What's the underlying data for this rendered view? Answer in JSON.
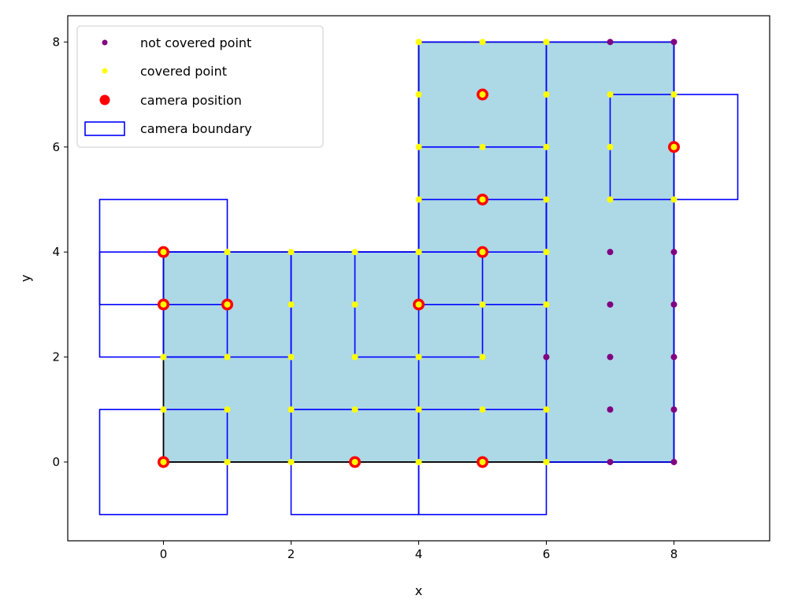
{
  "chart_data": {
    "type": "scatter",
    "title": "",
    "xlabel": "x",
    "ylabel": "y",
    "xlim": [
      -1.5,
      9.5
    ],
    "ylim": [
      -1.5,
      8.5
    ],
    "xticks": [
      "0",
      "2",
      "4",
      "6",
      "8"
    ],
    "yticks": [
      "0",
      "2",
      "4",
      "6",
      "8"
    ],
    "grid": false,
    "legend_position": "top-left",
    "legend": [
      {
        "label": "not covered point",
        "type": "point",
        "color": "#800080"
      },
      {
        "label": "covered point",
        "type": "point",
        "color": "#ffff00"
      },
      {
        "label": "camera position",
        "type": "point",
        "color": "#ff0000"
      },
      {
        "label": "camera boundary",
        "type": "rect",
        "color": "#0000ff"
      }
    ],
    "colors": {
      "region_fill": "#add8e6",
      "region_edge": "#000000",
      "not_covered": "#800080",
      "covered": "#ffff00",
      "camera": "#ff0000",
      "boundary": "#0000ff"
    },
    "region_polygon": [
      [
        0,
        0
      ],
      [
        8,
        0
      ],
      [
        8,
        8
      ],
      [
        4,
        8
      ],
      [
        4,
        4
      ],
      [
        0,
        4
      ]
    ],
    "not_covered_points": [
      [
        7,
        0
      ],
      [
        8,
        0
      ],
      [
        7,
        1
      ],
      [
        8,
        1
      ],
      [
        6,
        2
      ],
      [
        7,
        2
      ],
      [
        8,
        2
      ],
      [
        7,
        3
      ],
      [
        8,
        3
      ],
      [
        7,
        4
      ],
      [
        8,
        4
      ],
      [
        7,
        8
      ],
      [
        8,
        8
      ]
    ],
    "covered_points": [
      [
        0,
        0
      ],
      [
        1,
        0
      ],
      [
        2,
        0
      ],
      [
        3,
        0
      ],
      [
        4,
        0
      ],
      [
        5,
        0
      ],
      [
        6,
        0
      ],
      [
        0,
        1
      ],
      [
        1,
        1
      ],
      [
        2,
        1
      ],
      [
        3,
        1
      ],
      [
        4,
        1
      ],
      [
        5,
        1
      ],
      [
        6,
        1
      ],
      [
        0,
        2
      ],
      [
        1,
        2
      ],
      [
        2,
        2
      ],
      [
        3,
        2
      ],
      [
        4,
        2
      ],
      [
        5,
        2
      ],
      [
        0,
        3
      ],
      [
        1,
        3
      ],
      [
        2,
        3
      ],
      [
        3,
        3
      ],
      [
        4,
        3
      ],
      [
        5,
        3
      ],
      [
        6,
        3
      ],
      [
        0,
        4
      ],
      [
        1,
        4
      ],
      [
        2,
        4
      ],
      [
        3,
        4
      ],
      [
        4,
        4
      ],
      [
        5,
        4
      ],
      [
        6,
        4
      ],
      [
        4,
        5
      ],
      [
        5,
        5
      ],
      [
        6,
        5
      ],
      [
        7,
        5
      ],
      [
        8,
        5
      ],
      [
        4,
        6
      ],
      [
        5,
        6
      ],
      [
        6,
        6
      ],
      [
        7,
        6
      ],
      [
        8,
        6
      ],
      [
        4,
        7
      ],
      [
        5,
        7
      ],
      [
        6,
        7
      ],
      [
        7,
        7
      ],
      [
        8,
        7
      ],
      [
        4,
        8
      ],
      [
        5,
        8
      ],
      [
        6,
        8
      ]
    ],
    "camera_positions": [
      [
        0,
        4
      ],
      [
        0,
        3
      ],
      [
        1,
        3
      ],
      [
        4,
        3
      ],
      [
        5,
        4
      ],
      [
        5,
        5
      ],
      [
        5,
        7
      ],
      [
        8,
        6
      ],
      [
        0,
        0
      ],
      [
        3,
        0
      ],
      [
        5,
        0
      ]
    ],
    "camera_boundaries": [
      {
        "x0": -1,
        "y0": 3,
        "x1": 1,
        "y1": 5
      },
      {
        "x0": -1,
        "y0": 2,
        "x1": 1,
        "y1": 4
      },
      {
        "x0": 0,
        "y0": 2,
        "x1": 2,
        "y1": 4
      },
      {
        "x0": 3,
        "y0": 2,
        "x1": 5,
        "y1": 4
      },
      {
        "x0": 4,
        "y0": 3,
        "x1": 6,
        "y1": 5
      },
      {
        "x0": 4,
        "y0": 4,
        "x1": 6,
        "y1": 6
      },
      {
        "x0": 4,
        "y0": 6,
        "x1": 6,
        "y1": 8
      },
      {
        "x0": 7,
        "y0": 5,
        "x1": 9,
        "y1": 7
      },
      {
        "x0": -1,
        "y0": -1,
        "x1": 1,
        "y1": 1
      },
      {
        "x0": 2,
        "y0": -1,
        "x1": 4,
        "y1": 1
      },
      {
        "x0": 4,
        "y0": -1,
        "x1": 6,
        "y1": 1
      },
      {
        "x0": 6,
        "y0": 0,
        "x1": 8,
        "y1": 8
      },
      {
        "x0": 2,
        "y0": 1,
        "x1": 4,
        "y1": 4
      }
    ]
  }
}
